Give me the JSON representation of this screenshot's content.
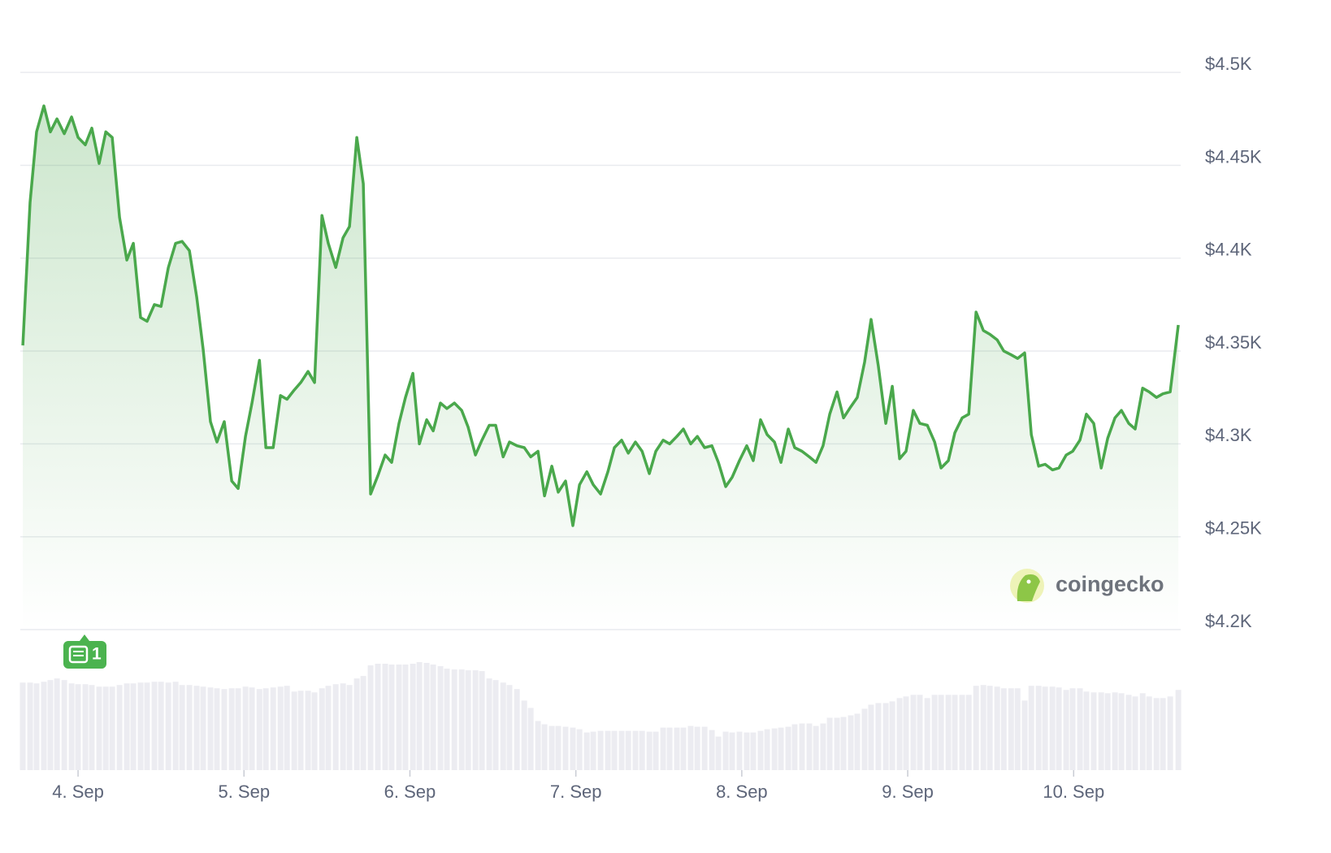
{
  "chart_data": {
    "type": "line",
    "x": [
      3.667,
      3.711,
      3.75,
      3.794,
      3.833,
      3.873,
      3.917,
      3.961,
      4.0,
      4.044,
      4.083,
      4.127,
      4.167,
      4.206,
      4.25,
      4.294,
      4.333,
      4.377,
      4.416,
      4.46,
      4.5,
      4.544,
      4.588,
      4.627,
      4.671,
      4.715,
      4.754,
      4.798,
      4.837,
      4.881,
      4.926,
      4.965,
      5.009,
      5.048,
      5.093,
      5.132,
      5.176,
      5.22,
      5.259,
      5.303,
      5.342,
      5.386,
      5.425,
      5.47,
      5.508,
      5.553,
      5.597,
      5.636,
      5.68,
      5.719,
      5.763,
      5.807,
      5.851,
      5.89,
      5.934,
      5.973,
      6.018,
      6.057,
      6.101,
      6.14,
      6.184,
      6.223,
      6.268,
      6.312,
      6.351,
      6.395,
      6.434,
      6.478,
      6.517,
      6.562,
      6.6,
      6.645,
      6.689,
      6.728,
      6.772,
      6.811,
      6.855,
      6.894,
      6.938,
      6.982,
      7.022,
      7.066,
      7.105,
      7.149,
      7.193,
      7.232,
      7.276,
      7.316,
      7.359,
      7.399,
      7.443,
      7.482,
      7.526,
      7.565,
      7.609,
      7.648,
      7.692,
      7.732,
      7.776,
      7.82,
      7.859,
      7.903,
      7.942,
      7.986,
      8.03,
      8.069,
      8.113,
      8.153,
      8.197,
      8.236,
      8.28,
      8.319,
      8.363,
      8.407,
      8.447,
      8.49,
      8.53,
      8.574,
      8.613,
      8.657,
      8.696,
      8.74,
      8.779,
      8.823,
      8.868,
      8.907,
      8.951,
      8.99,
      9.034,
      9.073,
      9.118,
      9.162,
      9.201,
      9.245,
      9.284,
      9.328,
      9.368,
      9.412,
      9.456,
      9.495,
      9.539,
      9.579,
      9.623,
      9.662,
      9.705,
      9.745,
      9.789,
      9.828,
      9.872,
      9.911,
      9.955,
      9.994,
      10.038,
      10.077,
      10.121,
      10.166,
      10.205,
      10.249,
      10.288,
      10.332,
      10.371,
      10.416,
      10.455,
      10.499,
      10.538,
      10.582,
      10.631
    ],
    "values": [
      4353,
      4430,
      4468,
      4482,
      4468,
      4475,
      4467,
      4476,
      4465,
      4461,
      4470,
      4451,
      4468,
      4465,
      4422,
      4399,
      4408,
      4368,
      4366,
      4375,
      4374,
      4395,
      4408,
      4409,
      4404,
      4379,
      4351,
      4312,
      4301,
      4312,
      4280,
      4276,
      4304,
      4322,
      4345,
      4298,
      4298,
      4326,
      4324,
      4329,
      4333,
      4339,
      4333,
      4423,
      4408,
      4395,
      4411,
      4417,
      4465,
      4440,
      4273,
      4283,
      4294,
      4290,
      4311,
      4325,
      4338,
      4300,
      4313,
      4307,
      4322,
      4319,
      4322,
      4318,
      4309,
      4294,
      4302,
      4310,
      4310,
      4293,
      4301,
      4299,
      4298,
      4293,
      4296,
      4272,
      4288,
      4274,
      4280,
      4256,
      4278,
      4285,
      4278,
      4273,
      4285,
      4298,
      4302,
      4295,
      4301,
      4296,
      4284,
      4296,
      4302,
      4300,
      4304,
      4308,
      4300,
      4304,
      4298,
      4299,
      4290,
      4277,
      4282,
      4291,
      4299,
      4291,
      4313,
      4305,
      4301,
      4290,
      4308,
      4298,
      4296,
      4293,
      4290,
      4299,
      4316,
      4328,
      4314,
      4320,
      4325,
      4344,
      4367,
      4342,
      4311,
      4331,
      4292,
      4296,
      4318,
      4311,
      4310,
      4301,
      4287,
      4291,
      4306,
      4314,
      4316,
      4371,
      4361,
      4359,
      4356,
      4350,
      4348,
      4346,
      4349,
      4305,
      4288,
      4289,
      4286,
      4287,
      4294,
      4296,
      4302,
      4316,
      4311,
      4287,
      4303,
      4314,
      4318,
      4311,
      4308,
      4330,
      4328,
      4325,
      4327,
      4328,
      4364
    ],
    "volume": [
      107,
      107,
      106,
      108,
      110,
      112,
      110,
      106,
      105,
      105,
      104,
      102,
      102,
      102,
      104,
      106,
      106,
      107,
      107,
      108,
      108,
      107,
      108,
      104,
      104,
      103,
      102,
      101,
      100,
      99,
      100,
      100,
      102,
      101,
      99,
      100,
      101,
      102,
      103,
      96,
      97,
      97,
      95,
      100,
      103,
      105,
      106,
      104,
      112,
      115,
      128,
      130,
      130,
      129,
      129,
      129,
      130,
      132,
      131,
      129,
      127,
      124,
      123,
      123,
      122,
      122,
      121,
      112,
      110,
      107,
      104,
      99,
      85,
      76,
      60,
      56,
      54,
      54,
      53,
      52,
      50,
      46,
      47,
      48,
      48,
      48,
      48,
      48,
      48,
      48,
      47,
      47,
      52,
      52,
      52,
      52,
      54,
      53,
      53,
      49,
      41,
      47,
      46,
      47,
      46,
      46,
      48,
      50,
      51,
      52,
      53,
      56,
      57,
      57,
      54,
      57,
      64,
      64,
      65,
      67,
      69,
      75,
      80,
      82,
      82,
      84,
      88,
      90,
      92,
      92,
      88,
      92,
      92,
      92,
      92,
      92,
      92,
      103,
      104,
      103,
      102,
      100,
      100,
      100,
      85,
      103,
      103,
      102,
      102,
      101,
      98,
      100,
      100,
      96,
      95,
      95,
      94,
      95,
      94,
      92,
      90,
      94,
      90,
      88,
      88,
      90,
      98
    ],
    "color": "#4aa84c",
    "volume_color": "#ececf1",
    "xlim": [
      3.652,
      10.645
    ],
    "xticks": [
      {
        "value": 4,
        "label": "4. Sep"
      },
      {
        "value": 5,
        "label": "5. Sep"
      },
      {
        "value": 6,
        "label": "6. Sep"
      },
      {
        "value": 7,
        "label": "7. Sep"
      },
      {
        "value": 8,
        "label": "8. Sep"
      },
      {
        "value": 9,
        "label": "9. Sep"
      },
      {
        "value": 10,
        "label": "10. Sep"
      }
    ],
    "ylim": [
      4200,
      4539
    ],
    "yticks": [
      {
        "value": 4200,
        "label": "$4.2K"
      },
      {
        "value": 4250,
        "label": "$4.25K"
      },
      {
        "value": 4300,
        "label": "$4.3K"
      },
      {
        "value": 4350,
        "label": "$4.35K"
      },
      {
        "value": 4400,
        "label": "$4.4K"
      },
      {
        "value": 4450,
        "label": "$4.45K"
      },
      {
        "value": 4500,
        "label": "$4.5K"
      }
    ],
    "grid": true,
    "news_badge": "1",
    "watermark": "coingecko"
  }
}
